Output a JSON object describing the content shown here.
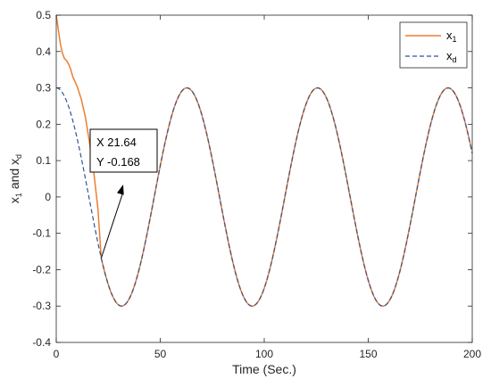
{
  "chart_data": {
    "type": "line",
    "xlabel": "Time (Sec.)",
    "ylabel": {
      "base1": "x",
      "sub1": "1",
      "mid": " and x",
      "sub2": "d"
    },
    "xlim": [
      0,
      200
    ],
    "ylim": [
      -0.4,
      0.5
    ],
    "xticks": [
      0,
      50,
      100,
      150,
      200
    ],
    "xtick_labels": [
      "0",
      "50",
      "100",
      "150",
      "200"
    ],
    "yticks": [
      -0.4,
      -0.3,
      -0.2,
      -0.1,
      0,
      0.1,
      0.2,
      0.3,
      0.4,
      0.5
    ],
    "ytick_labels": [
      "-0.4",
      "-0.3",
      "-0.2",
      "-0.1",
      "0",
      "0.1",
      "0.2",
      "0.3",
      "0.4",
      "0.5"
    ],
    "grid": false,
    "legend_position": "top-right",
    "series": [
      {
        "name": {
          "base": "x",
          "sub": "1"
        },
        "color": "#ED7D31",
        "dash": "solid",
        "points": [
          [
            0,
            0.5
          ],
          [
            1,
            0.46
          ],
          [
            2,
            0.42
          ],
          [
            3,
            0.395
          ],
          [
            4,
            0.38
          ],
          [
            5,
            0.375
          ],
          [
            6,
            0.365
          ],
          [
            7,
            0.35
          ],
          [
            8,
            0.33
          ],
          [
            10,
            0.305
          ],
          [
            12,
            0.27
          ],
          [
            14,
            0.22
          ],
          [
            16,
            0.15
          ],
          [
            18,
            0.07
          ],
          [
            20,
            -0.03
          ],
          [
            21.64,
            -0.168
          ]
        ]
      },
      {
        "name": {
          "base": "x",
          "sub": "d"
        },
        "color": "#2F5597",
        "dash": "dashed",
        "function": {
          "amplitude": 0.3,
          "period": 62.8,
          "form": "cosine"
        }
      }
    ],
    "datatip": {
      "x_line": "X 21.64",
      "y_line": "Y -0.168",
      "x": 21.64,
      "y": -0.168
    }
  }
}
